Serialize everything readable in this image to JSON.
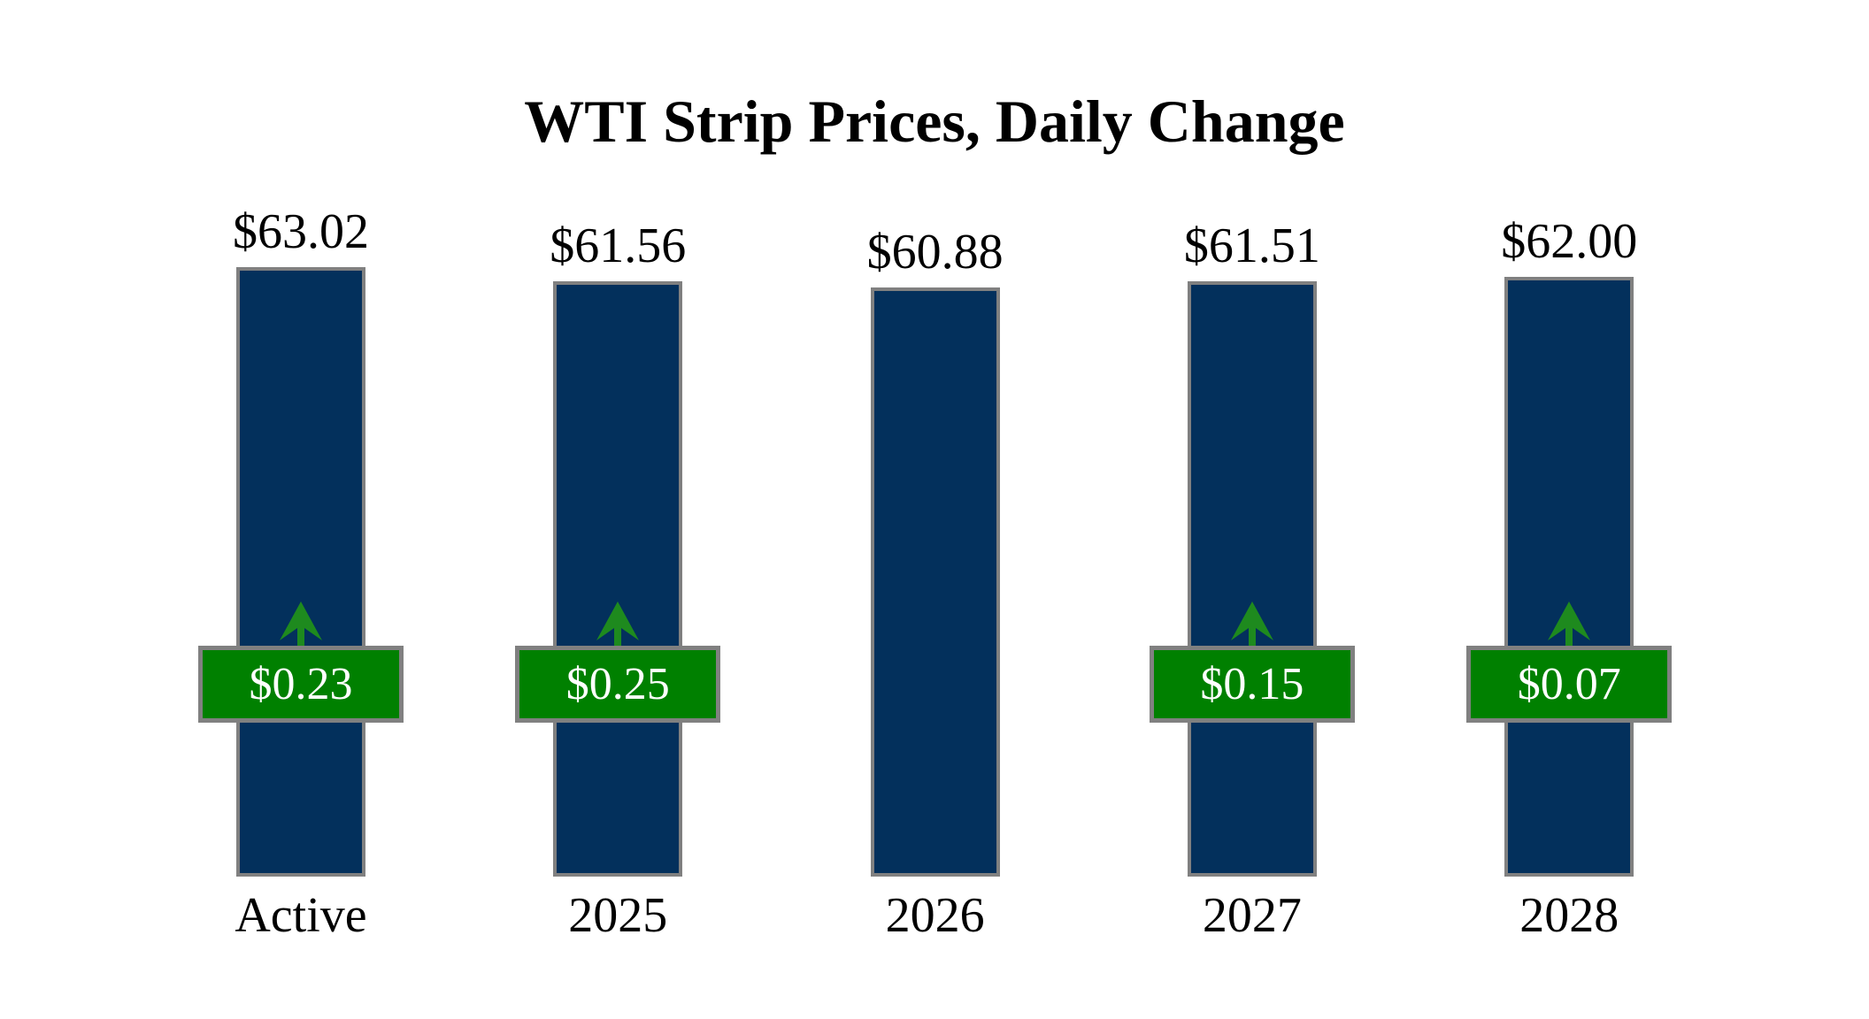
{
  "title": "WTI Strip Prices, Daily Change",
  "chart_data": {
    "type": "bar",
    "title": "WTI Strip Prices, Daily Change",
    "categories": [
      "Active",
      "2025",
      "2026",
      "2027",
      "2028"
    ],
    "values": [
      63.02,
      61.56,
      60.88,
      61.51,
      62.0
    ],
    "value_labels": [
      "$63.02",
      "$61.56",
      "$60.88",
      "$61.51",
      "$62.00"
    ],
    "daily_change_values": [
      0.23,
      0.25,
      null,
      0.15,
      0.07
    ],
    "daily_change_labels": [
      "$0.23",
      "$0.25",
      null,
      "$0.15",
      "$0.07"
    ],
    "change_directions": [
      "up",
      "up",
      null,
      "up",
      "up"
    ],
    "xlabel": "",
    "ylabel": "",
    "legend": "none",
    "grid": false,
    "axis_lines": false,
    "colors": {
      "bar_fill": "#03305C",
      "bar_border": "#808080",
      "badge_fill": "#008000",
      "badge_border": "#808080",
      "arrow": "#1E8A1E",
      "label_text": "#000000",
      "badge_text": "#FFFFFF",
      "background": "#FFFFFF",
      "title_text": "#000000"
    }
  }
}
